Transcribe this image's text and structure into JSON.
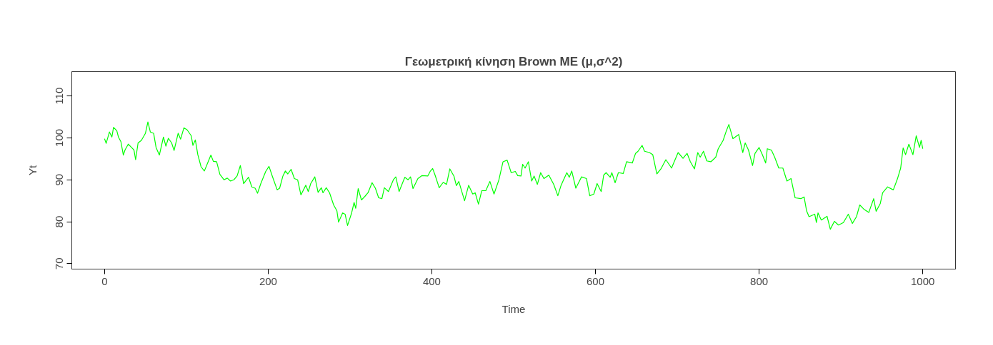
{
  "chart_data": {
    "type": "line",
    "title": "Γεωμετρική κίνηση Brown ME (μ,σ^2)",
    "xlabel": "Time",
    "ylabel": "Yt",
    "x": [
      0,
      2,
      6,
      9,
      11,
      15,
      17,
      20,
      23,
      25,
      29,
      33,
      36,
      38,
      41,
      45,
      50,
      53,
      56,
      60,
      63,
      67,
      72,
      75,
      78,
      82,
      85,
      90,
      93,
      97,
      101,
      106,
      108,
      111,
      114,
      118,
      122,
      126,
      130,
      133,
      137,
      141,
      146,
      150,
      154,
      158,
      162,
      166,
      170,
      176,
      180,
      184,
      187,
      191,
      197,
      201,
      205,
      211,
      214,
      218,
      221,
      224,
      228,
      232,
      236,
      240,
      246,
      249,
      252,
      257,
      261,
      265,
      267,
      271,
      275,
      280,
      284,
      286,
      291,
      294,
      297,
      302,
      305,
      307,
      310,
      314,
      318,
      322,
      327,
      331,
      335,
      339,
      342,
      347,
      353,
      356,
      360,
      367,
      371,
      374,
      377,
      383,
      388,
      395,
      398,
      401,
      404,
      409,
      414,
      418,
      422,
      427,
      430,
      433,
      440,
      445,
      450,
      453,
      457,
      461,
      466,
      471,
      476,
      482,
      487,
      492,
      497,
      502,
      505,
      509,
      511,
      514,
      518,
      522,
      525,
      529,
      533,
      537,
      543,
      549,
      554,
      558,
      565,
      568,
      571,
      576,
      583,
      589,
      593,
      598,
      602,
      607,
      610,
      613,
      618,
      620,
      624,
      628,
      634,
      638,
      645,
      649,
      652,
      657,
      660,
      666,
      670,
      675,
      680,
      686,
      693,
      701,
      707,
      712,
      716,
      721,
      725,
      728,
      732,
      736,
      741,
      747,
      750,
      756,
      760,
      763,
      768,
      775,
      780,
      783,
      787,
      792,
      795,
      800,
      804,
      808,
      810,
      815,
      819,
      824,
      829,
      834,
      839,
      844,
      851,
      855,
      858,
      861,
      868,
      870,
      872,
      876,
      883,
      887,
      892,
      897,
      903,
      909,
      914,
      919,
      923,
      928,
      934,
      940,
      943,
      948,
      951,
      957,
      964,
      969,
      973,
      976,
      979,
      983,
      988,
      992,
      996,
      998,
      1000
    ],
    "series": [
      {
        "color": "#00ff00",
        "values": [
          99.8,
          98.7,
          101.4,
          100.2,
          102.5,
          101.7,
          100.2,
          99.1,
          95.9,
          97.1,
          98.5,
          97.7,
          97.1,
          94.8,
          98.8,
          99.4,
          101.1,
          103.8,
          101.4,
          101.1,
          97.7,
          95.9,
          100.2,
          98.0,
          99.9,
          98.8,
          97.0,
          101.1,
          99.7,
          102.4,
          101.9,
          100.5,
          98.2,
          99.5,
          96.0,
          93.1,
          92.1,
          94.0,
          95.9,
          94.4,
          94.3,
          91.3,
          90.0,
          90.4,
          89.7,
          90.0,
          90.9,
          93.4,
          89.1,
          90.6,
          88.3,
          88.0,
          86.8,
          89.1,
          92.0,
          93.2,
          90.9,
          87.6,
          88.0,
          90.9,
          92.1,
          91.4,
          92.5,
          90.3,
          90.0,
          86.4,
          88.7,
          87.2,
          89.1,
          90.7,
          87.0,
          88.1,
          86.9,
          88.1,
          86.9,
          84.0,
          82.6,
          79.9,
          82.1,
          81.8,
          79.1,
          82.1,
          84.6,
          83.2,
          87.9,
          85.2,
          86.0,
          86.9,
          89.3,
          88.0,
          85.7,
          85.5,
          88.1,
          87.2,
          90.0,
          90.7,
          87.2,
          90.6,
          90.0,
          90.7,
          87.9,
          90.3,
          91.0,
          90.9,
          92.0,
          92.7,
          91.1,
          88.1,
          89.4,
          88.9,
          92.6,
          90.9,
          88.6,
          89.6,
          85.0,
          88.7,
          86.6,
          86.9,
          84.2,
          87.4,
          87.4,
          89.6,
          86.6,
          90.0,
          94.3,
          94.7,
          91.7,
          92.0,
          91.0,
          90.9,
          93.7,
          92.8,
          94.3,
          89.7,
          90.9,
          88.9,
          91.7,
          90.3,
          91.1,
          88.9,
          86.2,
          88.7,
          91.7,
          90.6,
          92.1,
          88.0,
          90.7,
          90.3,
          86.2,
          86.6,
          89.1,
          87.2,
          91.1,
          91.7,
          90.6,
          91.7,
          89.3,
          91.7,
          91.5,
          94.3,
          94.0,
          96.3,
          96.8,
          98.2,
          96.8,
          96.5,
          96.0,
          91.4,
          92.6,
          94.8,
          92.8,
          96.5,
          95.1,
          96.3,
          94.3,
          92.6,
          96.5,
          95.4,
          96.8,
          94.5,
          94.3,
          95.4,
          97.4,
          99.4,
          101.7,
          103.2,
          99.8,
          100.8,
          96.5,
          98.8,
          97.1,
          93.4,
          96.3,
          97.7,
          96.0,
          94.0,
          97.4,
          97.1,
          95.4,
          92.8,
          92.8,
          89.7,
          90.3,
          85.7,
          85.5,
          85.9,
          82.6,
          81.2,
          81.8,
          79.8,
          82.1,
          80.4,
          81.3,
          78.2,
          80.1,
          79.2,
          79.8,
          81.8,
          79.6,
          81.2,
          84.0,
          83.0,
          82.2,
          85.5,
          82.5,
          84.3,
          86.9,
          88.3,
          87.6,
          90.2,
          92.8,
          97.6,
          96.0,
          98.5,
          96.0,
          100.5,
          97.7,
          99.4,
          97.4
        ]
      }
    ],
    "xlim": [
      -40,
      1040
    ],
    "ylim": [
      68.7,
      115.8
    ],
    "xticks": [
      0,
      200,
      400,
      600,
      800,
      1000
    ],
    "yticks": [
      70,
      80,
      90,
      100,
      110
    ]
  }
}
